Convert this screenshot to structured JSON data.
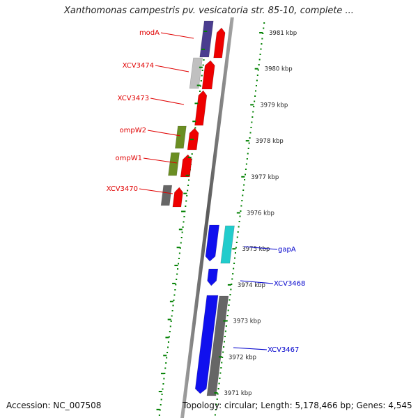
{
  "title": "Xanthomonas campestris pv. vesicatoria str. 85-10, complete ...",
  "footer": {
    "accession": "Accession: NC_007508",
    "summary": "Topology: circular; Length: 5,178,466 bp; Genes: 4,545"
  },
  "colors": {
    "forward_label": "#e00000",
    "reverse_label": "#0000cc",
    "tick_green": "#008000",
    "backbone": "#888888"
  },
  "kbp_ticks": [
    {
      "label": "3981 kbp"
    },
    {
      "label": "3980 kbp"
    },
    {
      "label": "3979 kbp"
    },
    {
      "label": "3978 kbp"
    },
    {
      "label": "3977 kbp"
    },
    {
      "label": "3976 kbp"
    },
    {
      "label": "3975 kbp"
    },
    {
      "label": "3974 kbp"
    },
    {
      "label": "3973 kbp"
    },
    {
      "label": "3972 kbp"
    },
    {
      "label": "3971 kbp"
    }
  ],
  "gene_labels": [
    {
      "name": "modA",
      "strand": "forward"
    },
    {
      "name": "XCV3474",
      "strand": "forward"
    },
    {
      "name": "XCV3473",
      "strand": "forward"
    },
    {
      "name": "ompW2",
      "strand": "forward"
    },
    {
      "name": "ompW1",
      "strand": "forward"
    },
    {
      "name": "XCV3470",
      "strand": "forward"
    },
    {
      "name": "gapA",
      "strand": "reverse"
    },
    {
      "name": "XCV3468",
      "strand": "reverse"
    },
    {
      "name": "XCV3467",
      "strand": "reverse"
    }
  ],
  "features": [
    {
      "name": "modA-cog",
      "color": "#4a3d8f"
    },
    {
      "name": "modA-cds",
      "color": "#ee0000"
    },
    {
      "name": "XCV3474-cog",
      "color": "#c0c0c0"
    },
    {
      "name": "XCV3474-cds",
      "color": "#ee0000"
    },
    {
      "name": "XCV3473-cds",
      "color": "#ee0000"
    },
    {
      "name": "ompW2-cog",
      "color": "#6b8e23"
    },
    {
      "name": "ompW2-cds",
      "color": "#ee0000"
    },
    {
      "name": "ompW1-cog",
      "color": "#6b8e23"
    },
    {
      "name": "ompW1-cds",
      "color": "#ee0000"
    },
    {
      "name": "XCV3470-cog",
      "color": "#666666"
    },
    {
      "name": "XCV3470-cds",
      "color": "#ee0000"
    },
    {
      "name": "gapA-cds",
      "color": "#1010ee"
    },
    {
      "name": "gapA-cog",
      "color": "#22cccc"
    },
    {
      "name": "XCV3468-cds",
      "color": "#1010ee"
    },
    {
      "name": "XCV3467-cds",
      "color": "#1010ee"
    },
    {
      "name": "XCV3467-cog",
      "color": "#666666"
    }
  ]
}
